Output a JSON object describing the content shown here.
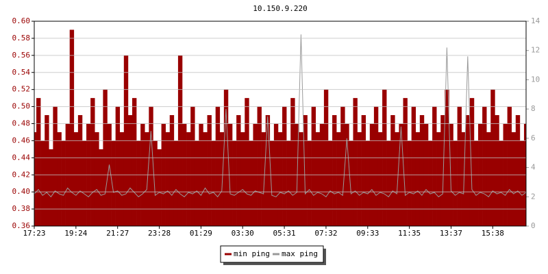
{
  "chart_data": {
    "type": "line",
    "title": "10.150.9.220",
    "categories": [
      "17:23",
      null,
      null,
      null,
      null,
      null,
      null,
      null,
      null,
      null,
      "19:24",
      null,
      null,
      null,
      null,
      null,
      null,
      null,
      null,
      null,
      "21:27",
      null,
      null,
      null,
      null,
      null,
      null,
      null,
      null,
      null,
      "23:28",
      null,
      null,
      null,
      null,
      null,
      null,
      null,
      null,
      null,
      "01:29",
      null,
      null,
      null,
      null,
      null,
      null,
      null,
      null,
      null,
      "03:30",
      null,
      null,
      null,
      null,
      null,
      null,
      null,
      null,
      null,
      "05:31",
      null,
      null,
      null,
      null,
      null,
      null,
      null,
      null,
      null,
      "07:32",
      null,
      null,
      null,
      null,
      null,
      null,
      null,
      null,
      null,
      "09:33",
      null,
      null,
      null,
      null,
      null,
      null,
      null,
      null,
      null,
      "11:35",
      null,
      null,
      null,
      null,
      null,
      null,
      null,
      null,
      null,
      "13:37",
      null,
      null,
      null,
      null,
      null,
      null,
      null,
      null,
      null,
      "15:38",
      null,
      null,
      null,
      null,
      null,
      null,
      null,
      null
    ],
    "series": [
      {
        "name": "min ping",
        "color": "#990000",
        "axis": "y",
        "values": [
          0.47,
          0.51,
          0.46,
          0.49,
          0.45,
          0.5,
          0.47,
          0.46,
          0.48,
          0.59,
          0.47,
          0.49,
          0.46,
          0.48,
          0.51,
          0.47,
          0.45,
          0.52,
          0.48,
          0.46,
          0.5,
          0.47,
          0.56,
          0.49,
          0.51,
          0.46,
          0.48,
          0.47,
          0.5,
          0.46,
          0.45,
          0.48,
          0.47,
          0.49,
          0.46,
          0.56,
          0.48,
          0.47,
          0.5,
          0.46,
          0.48,
          0.47,
          0.49,
          0.46,
          0.5,
          0.47,
          0.52,
          0.48,
          0.46,
          0.49,
          0.47,
          0.51,
          0.46,
          0.48,
          0.5,
          0.47,
          0.49,
          0.46,
          0.48,
          0.47,
          0.5,
          0.46,
          0.51,
          0.48,
          0.47,
          0.49,
          0.46,
          0.5,
          0.47,
          0.48,
          0.52,
          0.46,
          0.49,
          0.47,
          0.5,
          0.48,
          0.46,
          0.51,
          0.47,
          0.49,
          0.46,
          0.48,
          0.5,
          0.47,
          0.52,
          0.46,
          0.49,
          0.47,
          0.48,
          0.51,
          0.46,
          0.5,
          0.47,
          0.49,
          0.48,
          0.46,
          0.5,
          0.47,
          0.49,
          0.52,
          0.48,
          0.46,
          0.5,
          0.47,
          0.49,
          0.51,
          0.46,
          0.48,
          0.5,
          0.47,
          0.52,
          0.49,
          0.46,
          0.48,
          0.5,
          0.47,
          0.49,
          0.46,
          0.48
        ]
      },
      {
        "name": "max ping",
        "color": "#999999",
        "axis": "y2",
        "values": [
          2.2,
          2.5,
          2.1,
          2.3,
          2.0,
          2.4,
          2.2,
          2.1,
          2.6,
          2.3,
          2.1,
          2.4,
          2.2,
          2.0,
          2.3,
          2.5,
          2.1,
          2.2,
          4.2,
          2.3,
          2.4,
          2.1,
          2.2,
          2.6,
          2.3,
          2.0,
          2.2,
          2.5,
          6.5,
          2.1,
          2.3,
          2.2,
          2.4,
          2.1,
          2.5,
          2.2,
          2.0,
          2.3,
          2.2,
          2.4,
          2.1,
          2.6,
          2.2,
          2.3,
          2.0,
          2.4,
          8.0,
          2.2,
          2.1,
          2.3,
          2.5,
          2.2,
          2.1,
          2.4,
          2.3,
          2.2,
          7.5,
          2.1,
          2.0,
          2.3,
          2.2,
          2.4,
          2.1,
          2.3,
          13.1,
          2.2,
          2.5,
          2.1,
          2.3,
          2.2,
          2.0,
          2.4,
          2.2,
          2.3,
          2.1,
          6.0,
          2.2,
          2.4,
          2.1,
          2.3,
          2.2,
          2.5,
          2.1,
          2.3,
          2.2,
          2.0,
          2.4,
          2.2,
          6.8,
          2.1,
          2.3,
          2.2,
          2.4,
          2.1,
          2.5,
          2.2,
          2.3,
          2.0,
          2.2,
          12.2,
          2.4,
          2.1,
          2.3,
          2.2,
          11.6,
          2.5,
          2.1,
          2.3,
          2.2,
          2.0,
          2.4,
          2.2,
          2.3,
          2.1,
          2.5,
          2.2,
          2.4,
          2.1,
          2.3
        ]
      }
    ],
    "ylim": [
      0.36,
      0.6
    ],
    "yticks": [
      0.36,
      0.38,
      {
        "value": 0.4,
        "label": "0.40"
      },
      0.42,
      0.44,
      0.46,
      0.48,
      {
        "value": 0.5,
        "label": "0.50"
      },
      0.52,
      0.54,
      0.56,
      0.58,
      {
        "value": 0.6,
        "label": "0.60"
      }
    ],
    "y2lim": [
      0,
      14
    ],
    "y2ticks": [
      0,
      2,
      4,
      6,
      8,
      10,
      12,
      14
    ],
    "grid": true
  }
}
